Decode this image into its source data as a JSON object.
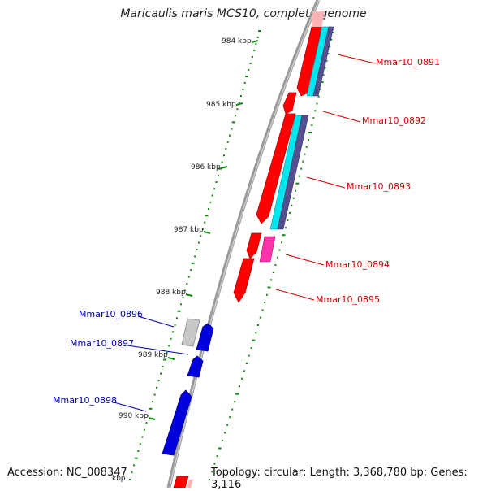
{
  "map": {
    "title": "Maricaulis maris MCS10, complete genome",
    "accession_text": "Accession: NC_008347",
    "topology_text": "Topology: circular; Length: 3,368,780 bp; Genes: 3,116",
    "ruler_labels": [
      "984 kbp",
      "985 kbp",
      "986 kbp",
      "987 kbp",
      "988 kbp",
      "989 kbp",
      "990 kbp",
      "kbp"
    ],
    "genes_plus_strand": [
      {
        "label": "Mmar10_0891",
        "color": "#cc0000"
      },
      {
        "label": "Mmar10_0892",
        "color": "#cc0000"
      },
      {
        "label": "Mmar10_0893",
        "color": "#cc0000"
      },
      {
        "label": "Mmar10_0894",
        "color": "#cc0000"
      },
      {
        "label": "Mmar10_0895",
        "color": "#cc0000"
      }
    ],
    "genes_minus_strand": [
      {
        "label": "Mmar10_0896",
        "color": "#0000aa"
      },
      {
        "label": "Mmar10_0897",
        "color": "#0000aa"
      },
      {
        "label": "Mmar10_0898",
        "color": "#0000aa"
      }
    ],
    "colors": {
      "backbone": "#888888",
      "cds_plus": "#ff0000",
      "cds_minus": "#0000dd",
      "gray_feature": "#c8c8c8",
      "pink_feature": "#ff33aa",
      "cyan_feature": "#00e5ee",
      "slate_feature": "#55508f",
      "gc_dots": "#118811"
    }
  }
}
